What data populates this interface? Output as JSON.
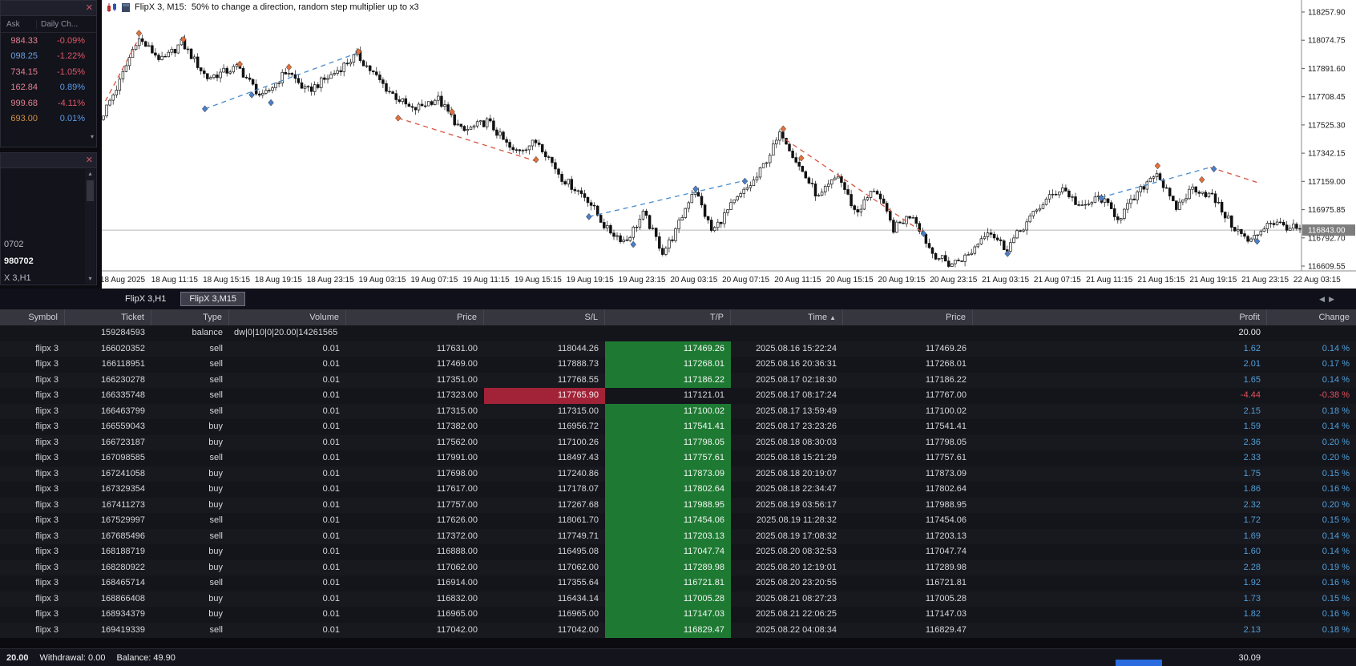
{
  "icons": {
    "close": "✕",
    "scroll_up": "▴",
    "scroll_down": "▾",
    "tab_left": "◀",
    "tab_right": "▶",
    "sort_asc": "▲"
  },
  "market_watch": {
    "columns": [
      "Ask",
      "Daily Ch..."
    ],
    "rows": [
      {
        "ask": "984.33",
        "change": "-0.09%",
        "ask_color": "#e08090",
        "change_color": "#e05868"
      },
      {
        "ask": "098.25",
        "change": "-1.22%",
        "ask_color": "#6aa0e0",
        "change_color": "#e05868"
      },
      {
        "ask": "734.15",
        "change": "-1.05%",
        "ask_color": "#e08090",
        "change_color": "#e05868"
      },
      {
        "ask": "162.84",
        "change": "0.89%",
        "ask_color": "#e08090",
        "change_color": "#5a9ae8"
      },
      {
        "ask": "999.68",
        "change": "-4.11%",
        "ask_color": "#e08090",
        "change_color": "#e05868"
      },
      {
        "ask": "693.00",
        "change": "0.01%",
        "ask_color": "#d09048",
        "change_color": "#5a9ae8"
      }
    ]
  },
  "navigator": {
    "items": [
      {
        "label": "0702",
        "bold": false
      },
      {
        "label": "980702",
        "bold": true
      },
      {
        "label": "X 3,H1",
        "bold": false
      }
    ]
  },
  "chart": {
    "title": "FlipX 3, M15:  50% to change a direction, random step multiplier up to x3",
    "current_price": "116843.00",
    "current_price_value": 116843.0,
    "price_axis": [
      [
        "118257.90",
        118257.9
      ],
      [
        "118074.75",
        118074.75
      ],
      [
        "117891.60",
        117891.6
      ],
      [
        "117708.45",
        117708.45
      ],
      [
        "117525.30",
        117525.3
      ],
      [
        "117342.15",
        117342.15
      ],
      [
        "117159.00",
        117159.0
      ],
      [
        "116975.85",
        116975.85
      ],
      [
        "116792.70",
        116792.7
      ],
      [
        "116609.55",
        116609.55
      ]
    ],
    "time_labels": [
      "18 Aug 2025",
      "18 Aug 11:15",
      "18 Aug 15:15",
      "18 Aug 19:15",
      "18 Aug 23:15",
      "19 Aug 03:15",
      "19 Aug 07:15",
      "19 Aug 11:15",
      "19 Aug 15:15",
      "19 Aug 19:15",
      "19 Aug 23:15",
      "20 Aug 03:15",
      "20 Aug 07:15",
      "20 Aug 11:15",
      "20 Aug 15:15",
      "20 Aug 19:15",
      "20 Aug 23:15",
      "21 Aug 03:15",
      "21 Aug 07:15",
      "21 Aug 11:15",
      "21 Aug 15:15",
      "21 Aug 19:15",
      "21 Aug 23:15",
      "22 Aug 03:15"
    ],
    "anchors": [
      [
        0.0,
        117560
      ],
      [
        0.016,
        117800
      ],
      [
        0.031,
        118090
      ],
      [
        0.052,
        117940
      ],
      [
        0.068,
        118060
      ],
      [
        0.089,
        117830
      ],
      [
        0.115,
        117900
      ],
      [
        0.135,
        117700
      ],
      [
        0.156,
        117880
      ],
      [
        0.172,
        117740
      ],
      [
        0.193,
        117850
      ],
      [
        0.214,
        117980
      ],
      [
        0.24,
        117750
      ],
      [
        0.26,
        117620
      ],
      [
        0.281,
        117700
      ],
      [
        0.302,
        117480
      ],
      [
        0.323,
        117550
      ],
      [
        0.344,
        117350
      ],
      [
        0.365,
        117420
      ],
      [
        0.385,
        117180
      ],
      [
        0.406,
        117050
      ],
      [
        0.422,
        116850
      ],
      [
        0.438,
        116770
      ],
      [
        0.453,
        116950
      ],
      [
        0.469,
        116700
      ],
      [
        0.479,
        116820
      ],
      [
        0.495,
        117120
      ],
      [
        0.51,
        116830
      ],
      [
        0.526,
        117000
      ],
      [
        0.547,
        117180
      ],
      [
        0.568,
        117480
      ],
      [
        0.583,
        117250
      ],
      [
        0.599,
        117050
      ],
      [
        0.615,
        117200
      ],
      [
        0.63,
        116950
      ],
      [
        0.646,
        117120
      ],
      [
        0.661,
        116850
      ],
      [
        0.677,
        116950
      ],
      [
        0.693,
        116700
      ],
      [
        0.708,
        116620
      ],
      [
        0.724,
        116680
      ],
      [
        0.74,
        116850
      ],
      [
        0.755,
        116720
      ],
      [
        0.771,
        116880
      ],
      [
        0.786,
        117020
      ],
      [
        0.802,
        117120
      ],
      [
        0.818,
        116980
      ],
      [
        0.833,
        117060
      ],
      [
        0.849,
        116920
      ],
      [
        0.865,
        117080
      ],
      [
        0.88,
        117230
      ],
      [
        0.896,
        116980
      ],
      [
        0.911,
        117120
      ],
      [
        0.927,
        117060
      ],
      [
        0.943,
        116880
      ],
      [
        0.958,
        116760
      ],
      [
        0.974,
        116900
      ],
      [
        1.0,
        116843
      ]
    ],
    "markers": [
      [
        0.031,
        118120,
        "o"
      ],
      [
        0.068,
        118080,
        "o"
      ],
      [
        0.115,
        117920,
        "o"
      ],
      [
        0.156,
        117900,
        "o"
      ],
      [
        0.214,
        118000,
        "o"
      ],
      [
        0.247,
        117570,
        "o"
      ],
      [
        0.292,
        117610,
        "o"
      ],
      [
        0.362,
        117300,
        "o"
      ],
      [
        0.568,
        117500,
        "o"
      ],
      [
        0.583,
        117310,
        "o"
      ],
      [
        0.88,
        117260,
        "o"
      ],
      [
        0.917,
        117170,
        "o"
      ],
      [
        0.086,
        117630,
        "b"
      ],
      [
        0.125,
        117720,
        "b"
      ],
      [
        0.141,
        117670,
        "b"
      ],
      [
        0.406,
        116930,
        "b"
      ],
      [
        0.443,
        116750,
        "b"
      ],
      [
        0.495,
        117110,
        "b"
      ],
      [
        0.536,
        117160,
        "b"
      ],
      [
        0.685,
        116820,
        "b"
      ],
      [
        0.755,
        116690,
        "b"
      ],
      [
        0.833,
        117050,
        "b"
      ],
      [
        0.927,
        117240,
        "b"
      ],
      [
        0.963,
        116770,
        "b"
      ]
    ],
    "trend_lines": [
      [
        0.003,
        117680,
        0.029,
        118060,
        "red"
      ],
      [
        0.086,
        117630,
        0.214,
        117995,
        "blue"
      ],
      [
        0.247,
        117570,
        0.362,
        117290,
        "red"
      ],
      [
        0.406,
        116930,
        0.536,
        117165,
        "blue"
      ],
      [
        0.57,
        117430,
        0.685,
        116825,
        "red"
      ],
      [
        0.833,
        117055,
        0.924,
        117250,
        "blue"
      ],
      [
        0.924,
        117250,
        0.964,
        117150,
        "red"
      ]
    ],
    "colors": {
      "trend_red": "#d65341",
      "trend_blue": "#4a8ccc",
      "marker_orange": "#e2703a",
      "marker_blue": "#4a7ec8",
      "candle": "#111111",
      "price_line": "#b8b8b8",
      "price_tag_bg": "#7d7d7d"
    }
  },
  "tabs": [
    {
      "label": "FlipX 3,H1",
      "active": false
    },
    {
      "label": "FlipX 3,M15",
      "active": true
    }
  ],
  "table": {
    "columns": [
      "Symbol",
      "Ticket",
      "Type",
      "Volume",
      "Price",
      "S/L",
      "T/P",
      "Time",
      "Price",
      "Profit",
      "Change"
    ],
    "sort_column": "Time",
    "rows": [
      {
        "symbol": "",
        "ticket": "159284593",
        "type": "balance",
        "volume": "dw|0|10|0|20.00|14261565",
        "price": "",
        "sl": "",
        "tp": "",
        "time": "",
        "price2": "",
        "profit": "20.00",
        "change": ""
      },
      {
        "symbol": "flipx 3",
        "ticket": "166020352",
        "type": "sell",
        "volume": "0.01",
        "price": "117631.00",
        "sl": "118044.26",
        "tp": "117469.26",
        "tp_green": true,
        "time": "2025.08.16 15:22:24",
        "price2": "117469.26",
        "profit": "1.62",
        "change": "0.14 %"
      },
      {
        "symbol": "flipx 3",
        "ticket": "166118951",
        "type": "sell",
        "volume": "0.01",
        "price": "117469.00",
        "sl": "117888.73",
        "tp": "117268.01",
        "tp_green": true,
        "time": "2025.08.16 20:36:31",
        "price2": "117268.01",
        "profit": "2.01",
        "change": "0.17 %"
      },
      {
        "symbol": "flipx 3",
        "ticket": "166230278",
        "type": "sell",
        "volume": "0.01",
        "price": "117351.00",
        "sl": "117768.55",
        "tp": "117186.22",
        "tp_green": true,
        "time": "2025.08.17 02:18:30",
        "price2": "117186.22",
        "profit": "1.65",
        "change": "0.14 %"
      },
      {
        "symbol": "flipx 3",
        "ticket": "166335748",
        "type": "sell",
        "volume": "0.01",
        "price": "117323.00",
        "sl": "117765.90",
        "sl_red": true,
        "tp": "117121.01",
        "time": "2025.08.17 08:17:24",
        "price2": "117767.00",
        "profit": "-4.44",
        "change": "-0.38 %",
        "loss": true
      },
      {
        "symbol": "flipx 3",
        "ticket": "166463799",
        "type": "sell",
        "volume": "0.01",
        "price": "117315.00",
        "sl": "117315.00",
        "tp": "117100.02",
        "tp_green": true,
        "time": "2025.08.17 13:59:49",
        "price2": "117100.02",
        "profit": "2.15",
        "change": "0.18 %"
      },
      {
        "symbol": "flipx 3",
        "ticket": "166559043",
        "type": "buy",
        "volume": "0.01",
        "price": "117382.00",
        "sl": "116956.72",
        "tp": "117541.41",
        "tp_green": true,
        "time": "2025.08.17 23:23:26",
        "price2": "117541.41",
        "profit": "1.59",
        "change": "0.14 %"
      },
      {
        "symbol": "flipx 3",
        "ticket": "166723187",
        "type": "buy",
        "volume": "0.01",
        "price": "117562.00",
        "sl": "117100.26",
        "tp": "117798.05",
        "tp_green": true,
        "time": "2025.08.18 08:30:03",
        "price2": "117798.05",
        "profit": "2.36",
        "change": "0.20 %"
      },
      {
        "symbol": "flipx 3",
        "ticket": "167098585",
        "type": "sell",
        "volume": "0.01",
        "price": "117991.00",
        "sl": "118497.43",
        "tp": "117757.61",
        "tp_green": true,
        "time": "2025.08.18 15:21:29",
        "price2": "117757.61",
        "profit": "2.33",
        "change": "0.20 %"
      },
      {
        "symbol": "flipx 3",
        "ticket": "167241058",
        "type": "buy",
        "volume": "0.01",
        "price": "117698.00",
        "sl": "117240.86",
        "tp": "117873.09",
        "tp_green": true,
        "time": "2025.08.18 20:19:07",
        "price2": "117873.09",
        "profit": "1.75",
        "change": "0.15 %"
      },
      {
        "symbol": "flipx 3",
        "ticket": "167329354",
        "type": "buy",
        "volume": "0.01",
        "price": "117617.00",
        "sl": "117178.07",
        "tp": "117802.64",
        "tp_green": true,
        "time": "2025.08.18 22:34:47",
        "price2": "117802.64",
        "profit": "1.86",
        "change": "0.16 %"
      },
      {
        "symbol": "flipx 3",
        "ticket": "167411273",
        "type": "buy",
        "volume": "0.01",
        "price": "117757.00",
        "sl": "117267.68",
        "tp": "117988.95",
        "tp_green": true,
        "time": "2025.08.19 03:56:17",
        "price2": "117988.95",
        "profit": "2.32",
        "change": "0.20 %"
      },
      {
        "symbol": "flipx 3",
        "ticket": "167529997",
        "type": "sell",
        "volume": "0.01",
        "price": "117626.00",
        "sl": "118061.70",
        "tp": "117454.06",
        "tp_green": true,
        "time": "2025.08.19 11:28:32",
        "price2": "117454.06",
        "profit": "1.72",
        "change": "0.15 %"
      },
      {
        "symbol": "flipx 3",
        "ticket": "167685496",
        "type": "sell",
        "volume": "0.01",
        "price": "117372.00",
        "sl": "117749.71",
        "tp": "117203.13",
        "tp_green": true,
        "time": "2025.08.19 17:08:32",
        "price2": "117203.13",
        "profit": "1.69",
        "change": "0.14 %"
      },
      {
        "symbol": "flipx 3",
        "ticket": "168188719",
        "type": "buy",
        "volume": "0.01",
        "price": "116888.00",
        "sl": "116495.08",
        "tp": "117047.74",
        "tp_green": true,
        "time": "2025.08.20 08:32:53",
        "price2": "117047.74",
        "profit": "1.60",
        "change": "0.14 %"
      },
      {
        "symbol": "flipx 3",
        "ticket": "168280922",
        "type": "buy",
        "volume": "0.01",
        "price": "117062.00",
        "sl": "117062.00",
        "tp": "117289.98",
        "tp_green": true,
        "time": "2025.08.20 12:19:01",
        "price2": "117289.98",
        "profit": "2.28",
        "change": "0.19 %"
      },
      {
        "symbol": "flipx 3",
        "ticket": "168465714",
        "type": "sell",
        "volume": "0.01",
        "price": "116914.00",
        "sl": "117355.64",
        "tp": "116721.81",
        "tp_green": true,
        "time": "2025.08.20 23:20:55",
        "price2": "116721.81",
        "profit": "1.92",
        "change": "0.16 %"
      },
      {
        "symbol": "flipx 3",
        "ticket": "168866408",
        "type": "buy",
        "volume": "0.01",
        "price": "116832.00",
        "sl": "116434.14",
        "tp": "117005.28",
        "tp_green": true,
        "time": "2025.08.21 08:27:23",
        "price2": "117005.28",
        "profit": "1.73",
        "change": "0.15 %"
      },
      {
        "symbol": "flipx 3",
        "ticket": "168934379",
        "type": "buy",
        "volume": "0.01",
        "price": "116965.00",
        "sl": "116965.00",
        "tp": "117147.03",
        "tp_green": true,
        "time": "2025.08.21 22:06:25",
        "price2": "117147.03",
        "profit": "1.82",
        "change": "0.16 %"
      },
      {
        "symbol": "flipx 3",
        "ticket": "169419339",
        "type": "sell",
        "volume": "0.01",
        "price": "117042.00",
        "sl": "117042.00",
        "tp": "116829.47",
        "tp_green": true,
        "time": "2025.08.22 04:08:34",
        "price2": "116829.47",
        "profit": "2.13",
        "change": "0.18 %"
      }
    ]
  },
  "status_bar": {
    "profit": "20.00",
    "withdrawal": "Withdrawal: 0.00",
    "balance": "Balance: 49.90",
    "total": "30.09"
  }
}
